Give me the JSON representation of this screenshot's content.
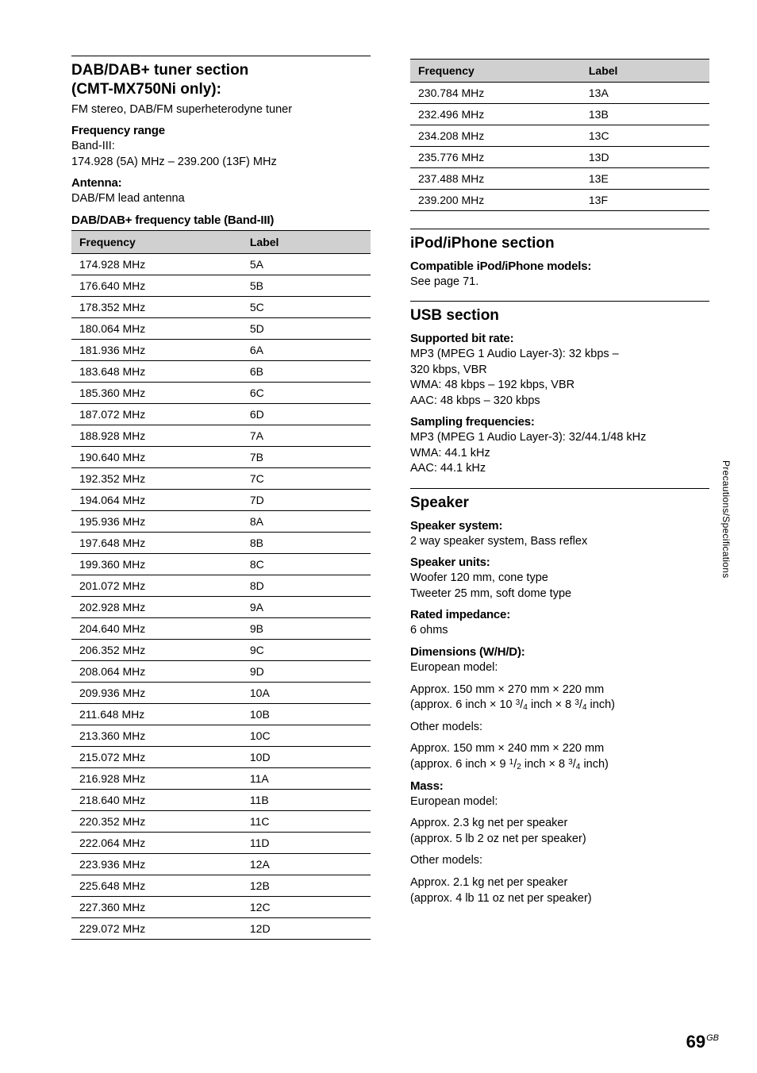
{
  "sideLabel": "Precautions/Specifications",
  "pageNumber": "69",
  "pageSuffix": "GB",
  "left": {
    "dab": {
      "title1": "DAB/DAB+ tuner section",
      "title2": "(CMT-MX750Ni only):",
      "desc": "FM stereo, DAB/FM superheterodyne tuner",
      "freqRangeHeading": "Frequency range",
      "freqRangeL1": "Band-III:",
      "freqRangeL2": "174.928 (5A) MHz – 239.200 (13F) MHz",
      "antennaHeading": "Antenna:",
      "antennaText": "DAB/FM lead antenna",
      "tableHeading": "DAB/DAB+ frequency table (Band-III)",
      "headers": {
        "freq": "Frequency",
        "label": "Label"
      },
      "rows": [
        {
          "f": "174.928 MHz",
          "l": "5A"
        },
        {
          "f": "176.640 MHz",
          "l": "5B"
        },
        {
          "f": "178.352 MHz",
          "l": "5C"
        },
        {
          "f": "180.064 MHz",
          "l": "5D"
        },
        {
          "f": "181.936 MHz",
          "l": "6A"
        },
        {
          "f": "183.648 MHz",
          "l": "6B"
        },
        {
          "f": "185.360 MHz",
          "l": "6C"
        },
        {
          "f": "187.072 MHz",
          "l": "6D"
        },
        {
          "f": "188.928 MHz",
          "l": "7A"
        },
        {
          "f": "190.640 MHz",
          "l": "7B"
        },
        {
          "f": "192.352 MHz",
          "l": "7C"
        },
        {
          "f": "194.064 MHz",
          "l": "7D"
        },
        {
          "f": "195.936 MHz",
          "l": "8A"
        },
        {
          "f": "197.648 MHz",
          "l": "8B"
        },
        {
          "f": "199.360 MHz",
          "l": "8C"
        },
        {
          "f": "201.072 MHz",
          "l": "8D"
        },
        {
          "f": "202.928 MHz",
          "l": "9A"
        },
        {
          "f": "204.640 MHz",
          "l": "9B"
        },
        {
          "f": "206.352 MHz",
          "l": "9C"
        },
        {
          "f": "208.064 MHz",
          "l": "9D"
        },
        {
          "f": "209.936 MHz",
          "l": "10A"
        },
        {
          "f": "211.648 MHz",
          "l": "10B"
        },
        {
          "f": "213.360 MHz",
          "l": "10C"
        },
        {
          "f": "215.072 MHz",
          "l": "10D"
        },
        {
          "f": "216.928 MHz",
          "l": "11A"
        },
        {
          "f": "218.640 MHz",
          "l": "11B"
        },
        {
          "f": "220.352 MHz",
          "l": "11C"
        },
        {
          "f": "222.064 MHz",
          "l": "11D"
        },
        {
          "f": "223.936 MHz",
          "l": "12A"
        },
        {
          "f": "225.648 MHz",
          "l": "12B"
        },
        {
          "f": "227.360 MHz",
          "l": "12C"
        },
        {
          "f": "229.072 MHz",
          "l": "12D"
        }
      ]
    }
  },
  "right": {
    "dabCont": {
      "headers": {
        "freq": "Frequency",
        "label": "Label"
      },
      "rows": [
        {
          "f": "230.784 MHz",
          "l": "13A"
        },
        {
          "f": "232.496 MHz",
          "l": "13B"
        },
        {
          "f": "234.208 MHz",
          "l": "13C"
        },
        {
          "f": "235.776 MHz",
          "l": "13D"
        },
        {
          "f": "237.488 MHz",
          "l": "13E"
        },
        {
          "f": "239.200 MHz",
          "l": "13F"
        }
      ]
    },
    "ipod": {
      "title": "iPod/iPhone section",
      "h1": "Compatible iPod/iPhone models:",
      "t1": "See page 71."
    },
    "usb": {
      "title": "USB section",
      "h1": "Supported bit rate:",
      "t1a": "MP3 (MPEG 1 Audio Layer-3): 32 kbps –",
      "t1b": "320 kbps, VBR",
      "t1c": "WMA: 48 kbps – 192 kbps, VBR",
      "t1d": "AAC: 48 kbps – 320 kbps",
      "h2": "Sampling frequencies:",
      "t2a": "MP3 (MPEG 1 Audio Layer-3): 32/44.1/48 kHz",
      "t2b": "WMA: 44.1 kHz",
      "t2c": "AAC: 44.1 kHz"
    },
    "speaker": {
      "title": "Speaker",
      "h1": "Speaker system:",
      "t1": "2 way speaker system, Bass reflex",
      "h2": "Speaker units:",
      "t2a": "Woofer 120 mm, cone type",
      "t2b": "Tweeter 25 mm, soft dome type",
      "h3": "Rated impedance:",
      "t3": "6 ohms",
      "h4": "Dimensions (W/H/D):",
      "d_eu_label": "European model:",
      "d_eu_1": "Approx. 150 mm × 270 mm × 220 mm",
      "d_other_label": "Other models:",
      "d_other_1": "Approx. 150 mm × 240 mm × 220 mm",
      "h5": "Mass:",
      "m_eu_label": "European model:",
      "m_eu_1": "Approx. 2.3 kg net per speaker",
      "m_eu_2": "(approx. 5 lb 2 oz net per speaker)",
      "m_other_label": "Other models:",
      "m_other_1": "Approx. 2.1 kg net per speaker",
      "m_other_2": "(approx. 4 lb 11 oz net per speaker)"
    }
  }
}
